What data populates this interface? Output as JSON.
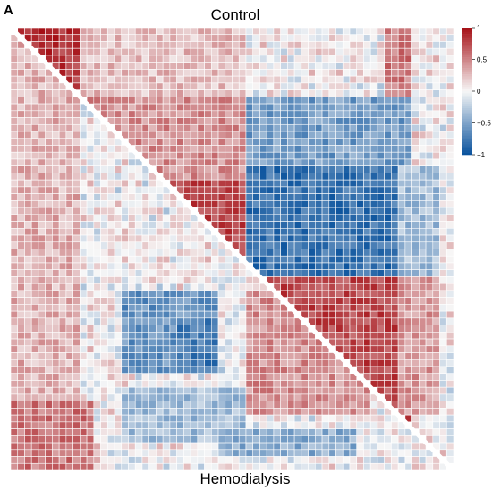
{
  "panel_label": "A",
  "chart_data": {
    "type": "heatmap",
    "title_top": "Control",
    "title_bottom": "Hemodialysis",
    "upper_triangle": "Control",
    "lower_triangle": "Hemodialysis",
    "n": 64,
    "value_range": [
      -1,
      1
    ],
    "colorbar": {
      "ticks": [
        1,
        0.5,
        0,
        -0.5,
        -1
      ],
      "tick_labels": [
        "1",
        "0.5",
        "0",
        "−0.5",
        "−1"
      ],
      "colors": {
        "low": "#08519c",
        "mid": "#f7f7f7",
        "high": "#a50f15"
      }
    },
    "upper_blocks": [
      {
        "rows": [
          0,
          10
        ],
        "cols": [
          0,
          10
        ],
        "value": 0.85
      },
      {
        "rows": [
          0,
          12
        ],
        "cols": [
          10,
          34
        ],
        "value": 0.25
      },
      {
        "rows": [
          10,
          34
        ],
        "cols": [
          10,
          34
        ],
        "value": 0.45
      },
      {
        "rows": [
          22,
          34
        ],
        "cols": [
          22,
          34
        ],
        "value": 0.75
      },
      {
        "rows": [
          10,
          20
        ],
        "cols": [
          34,
          58
        ],
        "value": -0.55
      },
      {
        "rows": [
          20,
          36
        ],
        "cols": [
          34,
          56
        ],
        "value": -0.8
      },
      {
        "rows": [
          20,
          36
        ],
        "cols": [
          56,
          62
        ],
        "value": -0.35
      },
      {
        "rows": [
          36,
          58
        ],
        "cols": [
          36,
          58
        ],
        "value": 0.75
      },
      {
        "rows": [
          36,
          56
        ],
        "cols": [
          56,
          62
        ],
        "value": 0.4
      },
      {
        "rows": [
          0,
          10
        ],
        "cols": [
          54,
          58
        ],
        "value": 0.55
      }
    ],
    "lower_blocks": [
      {
        "rows": [
          0,
          64
        ],
        "cols": [
          0,
          10
        ],
        "value": 0.3
      },
      {
        "rows": [
          38,
          50
        ],
        "cols": [
          16,
          30
        ],
        "value": -0.6
      },
      {
        "rows": [
          42,
          50
        ],
        "cols": [
          24,
          30
        ],
        "value": -0.75
      },
      {
        "rows": [
          52,
          60
        ],
        "cols": [
          16,
          34
        ],
        "value": -0.35
      },
      {
        "rows": [
          38,
          56
        ],
        "cols": [
          34,
          52
        ],
        "value": 0.45
      },
      {
        "rows": [
          54,
          64
        ],
        "cols": [
          0,
          12
        ],
        "value": 0.55
      },
      {
        "rows": [
          58,
          62
        ],
        "cols": [
          30,
          50
        ],
        "value": -0.45
      }
    ]
  }
}
